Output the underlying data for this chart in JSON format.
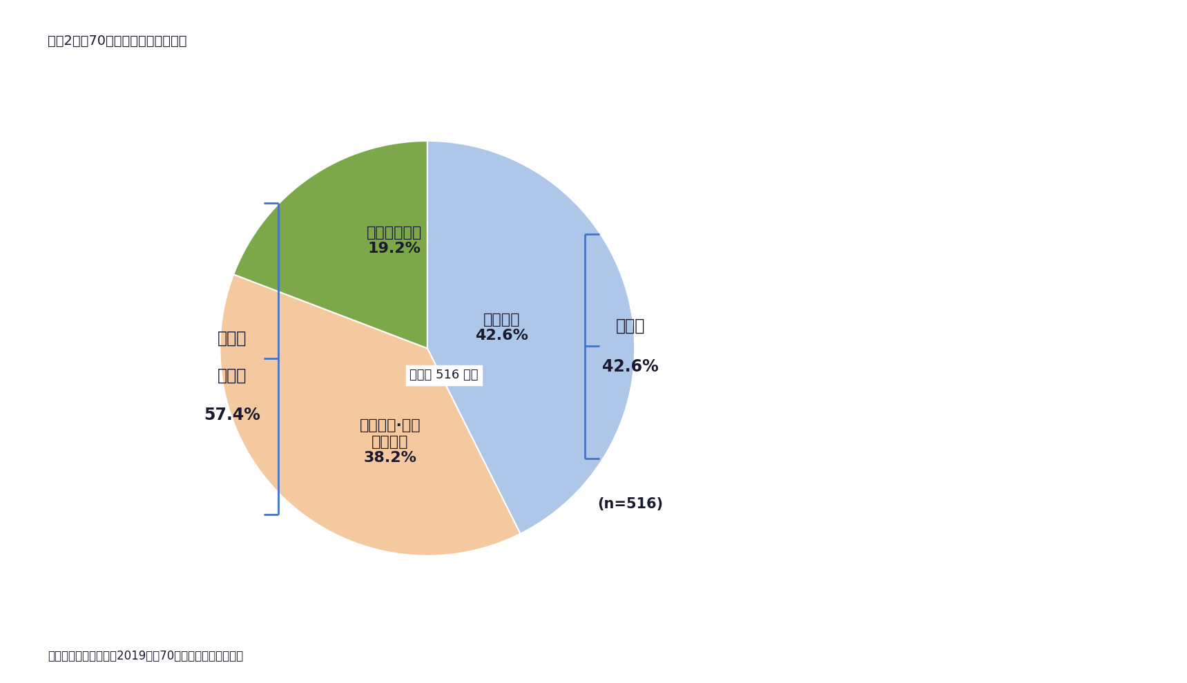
{
  "title": "図表2　「70歳定年」に対する意見",
  "title_fontsize": 14,
  "slices": [
    {
      "label": "歓迎する",
      "value": 42.6,
      "color": "#aec6e8"
    },
    {
      "label": "とまどい·困惑\nを感じる",
      "value": 38.2,
      "color": "#f5c9a0"
    },
    {
      "label": "歓迎できない",
      "value": 19.2,
      "color": "#7da84a"
    }
  ],
  "startangle": 90,
  "center_text": "（対象 516 人）",
  "left_bracket_label1": "アンチ",
  "left_bracket_label2": "歓迎派",
  "left_bracket_pct": "57.4%",
  "right_bracket_label": "歓迎派",
  "right_bracket_pct": "42.6%",
  "n_label": "(n=516)",
  "source": "資料）定年後研究所（2019）「70歳定年に関する調査」",
  "background_color": "#ffffff",
  "text_color": "#1a1a2e",
  "bracket_color": "#4472c4"
}
